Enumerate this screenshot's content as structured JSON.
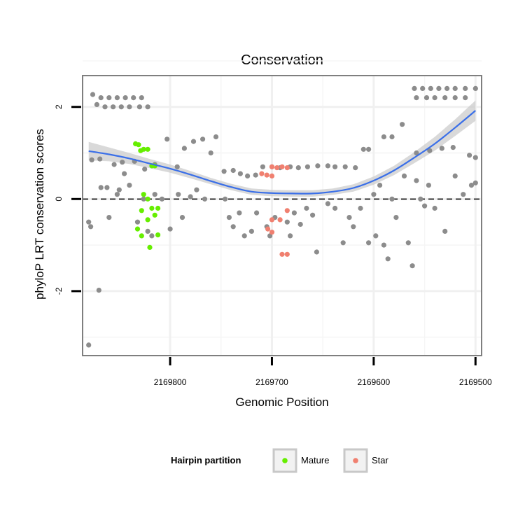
{
  "chart_data": {
    "type": "scatter",
    "title": "Conservation",
    "xlabel": "Genomic Position",
    "ylabel": "phyloP LRT conservation scores",
    "x_reversed": true,
    "xlim": [
      2169886,
      2169494
    ],
    "ylim": [
      -3.4,
      2.68
    ],
    "x_ticks": [
      2169800,
      2169700,
      2169600,
      2169500
    ],
    "x_tick_labels": [
      "2169800",
      "2169700",
      "2169600",
      "2169500"
    ],
    "y_ticks": [
      2,
      0,
      -2
    ],
    "y_tick_labels": [
      "2",
      "0",
      "-2"
    ],
    "reference_line": {
      "y": 0,
      "style": "dashed"
    },
    "grid": true,
    "legend": {
      "title": "Hairpin partition",
      "position": "bottom",
      "entries": [
        {
          "label": "Mature",
          "color": "#66ee00"
        },
        {
          "label": "Star",
          "color": "#f08070"
        }
      ]
    },
    "colors": {
      "other": "#8c8c8c",
      "mature": "#66ee00",
      "star": "#f08070",
      "smooth": "#3a6fe8",
      "band": "#cccccc"
    },
    "series": [
      {
        "name": "Other",
        "points": [
          [
            2169876,
            2.27
          ],
          [
            2169868,
            2.2
          ],
          [
            2169860,
            2.2
          ],
          [
            2169852,
            2.2
          ],
          [
            2169844,
            2.2
          ],
          [
            2169836,
            2.2
          ],
          [
            2169828,
            2.2
          ],
          [
            2169872,
            2.05
          ],
          [
            2169864,
            2.0
          ],
          [
            2169856,
            2.0
          ],
          [
            2169848,
            2.0
          ],
          [
            2169840,
            2.0
          ],
          [
            2169830,
            2.0
          ],
          [
            2169822,
            2.0
          ],
          [
            2169877,
            0.85
          ],
          [
            2169869,
            0.87
          ],
          [
            2169855,
            0.75
          ],
          [
            2169847,
            0.8
          ],
          [
            2169835,
            0.82
          ],
          [
            2169825,
            0.65
          ],
          [
            2169815,
            0.75
          ],
          [
            2169803,
            1.3
          ],
          [
            2169793,
            0.7
          ],
          [
            2169786,
            1.1
          ],
          [
            2169777,
            1.25
          ],
          [
            2169768,
            1.3
          ],
          [
            2169760,
            1.0
          ],
          [
            2169755,
            1.35
          ],
          [
            2169747,
            0.6
          ],
          [
            2169738,
            0.62
          ],
          [
            2169731,
            0.55
          ],
          [
            2169724,
            0.5
          ],
          [
            2169716,
            0.52
          ],
          [
            2169709,
            0.7
          ],
          [
            2169700,
            0.7
          ],
          [
            2169692,
            0.68
          ],
          [
            2169682,
            0.7
          ],
          [
            2169674,
            0.68
          ],
          [
            2169665,
            0.7
          ],
          [
            2169655,
            0.72
          ],
          [
            2169645,
            0.72
          ],
          [
            2169638,
            0.7
          ],
          [
            2169628,
            0.7
          ],
          [
            2169618,
            0.68
          ],
          [
            2169610,
            1.08
          ],
          [
            2169605,
            1.08
          ],
          [
            2169590,
            1.35
          ],
          [
            2169582,
            1.35
          ],
          [
            2169572,
            1.62
          ],
          [
            2169558,
            1.0
          ],
          [
            2169545,
            1.05
          ],
          [
            2169533,
            1.1
          ],
          [
            2169522,
            1.12
          ],
          [
            2169506,
            0.95
          ],
          [
            2169500,
            0.9
          ],
          [
            2169560,
            2.4
          ],
          [
            2169552,
            2.4
          ],
          [
            2169544,
            2.4
          ],
          [
            2169536,
            2.4
          ],
          [
            2169528,
            2.4
          ],
          [
            2169520,
            2.4
          ],
          [
            2169510,
            2.4
          ],
          [
            2169500,
            2.4
          ],
          [
            2169558,
            2.2
          ],
          [
            2169548,
            2.2
          ],
          [
            2169540,
            2.2
          ],
          [
            2169530,
            2.2
          ],
          [
            2169520,
            2.2
          ],
          [
            2169510,
            2.2
          ],
          [
            2169880,
            -0.5
          ],
          [
            2169878,
            -0.6
          ],
          [
            2169868,
            0.25
          ],
          [
            2169862,
            0.25
          ],
          [
            2169860,
            -0.4
          ],
          [
            2169852,
            0.1
          ],
          [
            2169850,
            0.2
          ],
          [
            2169845,
            0.55
          ],
          [
            2169840,
            0.3
          ],
          [
            2169832,
            -0.5
          ],
          [
            2169826,
            0.0
          ],
          [
            2169822,
            -0.7
          ],
          [
            2169818,
            -0.8
          ],
          [
            2169815,
            0.1
          ],
          [
            2169808,
            0.0
          ],
          [
            2169800,
            -0.65
          ],
          [
            2169792,
            0.1
          ],
          [
            2169788,
            -0.4
          ],
          [
            2169780,
            0.05
          ],
          [
            2169774,
            0.2
          ],
          [
            2169766,
            0.0
          ],
          [
            2169746,
            0.0
          ],
          [
            2169742,
            -0.4
          ],
          [
            2169738,
            -0.6
          ],
          [
            2169732,
            -0.3
          ],
          [
            2169727,
            -0.8
          ],
          [
            2169720,
            -0.7
          ],
          [
            2169715,
            -0.3
          ],
          [
            2169705,
            -0.6
          ],
          [
            2169702,
            -0.8
          ],
          [
            2169697,
            -0.4
          ],
          [
            2169685,
            -0.5
          ],
          [
            2169682,
            -0.8
          ],
          [
            2169678,
            -0.3
          ],
          [
            2169672,
            -0.55
          ],
          [
            2169666,
            -0.2
          ],
          [
            2169660,
            -0.35
          ],
          [
            2169656,
            -1.15
          ],
          [
            2169645,
            -0.1
          ],
          [
            2169638,
            -0.2
          ],
          [
            2169630,
            -0.95
          ],
          [
            2169624,
            -0.4
          ],
          [
            2169620,
            -0.6
          ],
          [
            2169613,
            -0.2
          ],
          [
            2169605,
            -0.95
          ],
          [
            2169600,
            0.1
          ],
          [
            2169598,
            -0.8
          ],
          [
            2169594,
            0.3
          ],
          [
            2169590,
            -1.0
          ],
          [
            2169586,
            -1.3
          ],
          [
            2169582,
            0.0
          ],
          [
            2169578,
            -0.4
          ],
          [
            2169570,
            0.5
          ],
          [
            2169566,
            -0.95
          ],
          [
            2169562,
            -1.45
          ],
          [
            2169558,
            0.4
          ],
          [
            2169554,
            0.0
          ],
          [
            2169550,
            -0.15
          ],
          [
            2169546,
            0.3
          ],
          [
            2169540,
            -0.2
          ],
          [
            2169530,
            -0.7
          ],
          [
            2169520,
            0.5
          ],
          [
            2169512,
            0.1
          ],
          [
            2169504,
            0.3
          ],
          [
            2169500,
            0.35
          ],
          [
            2169870,
            -1.98
          ],
          [
            2169880,
            -3.17
          ]
        ]
      },
      {
        "name": "Mature",
        "points": [
          [
            2169834,
            1.2
          ],
          [
            2169831,
            1.18
          ],
          [
            2169829,
            1.05
          ],
          [
            2169826,
            1.08
          ],
          [
            2169822,
            1.08
          ],
          [
            2169818,
            0.72
          ],
          [
            2169815,
            0.72
          ],
          [
            2169826,
            0.1
          ],
          [
            2169822,
            0.0
          ],
          [
            2169818,
            -0.2
          ],
          [
            2169815,
            -0.35
          ],
          [
            2169812,
            -0.2
          ],
          [
            2169828,
            -0.25
          ],
          [
            2169822,
            -0.45
          ],
          [
            2169832,
            -0.65
          ],
          [
            2169828,
            -0.8
          ],
          [
            2169820,
            -1.05
          ],
          [
            2169812,
            -0.78
          ]
        ]
      },
      {
        "name": "Star",
        "points": [
          [
            2169700,
            0.7
          ],
          [
            2169695,
            0.68
          ],
          [
            2169690,
            0.7
          ],
          [
            2169685,
            0.68
          ],
          [
            2169710,
            0.55
          ],
          [
            2169705,
            0.52
          ],
          [
            2169700,
            0.5
          ],
          [
            2169685,
            -0.25
          ],
          [
            2169692,
            -0.45
          ],
          [
            2169700,
            -0.45
          ],
          [
            2169704,
            -0.65
          ],
          [
            2169700,
            -0.72
          ],
          [
            2169690,
            -1.2
          ],
          [
            2169685,
            -1.2
          ]
        ]
      }
    ],
    "smooth": {
      "x": [
        2169880,
        2169860,
        2169840,
        2169820,
        2169800,
        2169780,
        2169760,
        2169740,
        2169720,
        2169700,
        2169680,
        2169660,
        2169640,
        2169620,
        2169600,
        2169580,
        2169560,
        2169540,
        2169520,
        2169500
      ],
      "y": [
        1.04,
        0.97,
        0.88,
        0.77,
        0.66,
        0.53,
        0.39,
        0.26,
        0.16,
        0.13,
        0.12,
        0.12,
        0.16,
        0.24,
        0.4,
        0.62,
        0.9,
        1.2,
        1.55,
        1.92
      ],
      "ci": [
        0.2,
        0.15,
        0.12,
        0.1,
        0.09,
        0.08,
        0.07,
        0.07,
        0.07,
        0.07,
        0.07,
        0.07,
        0.07,
        0.08,
        0.09,
        0.1,
        0.12,
        0.15,
        0.18,
        0.22
      ]
    }
  }
}
